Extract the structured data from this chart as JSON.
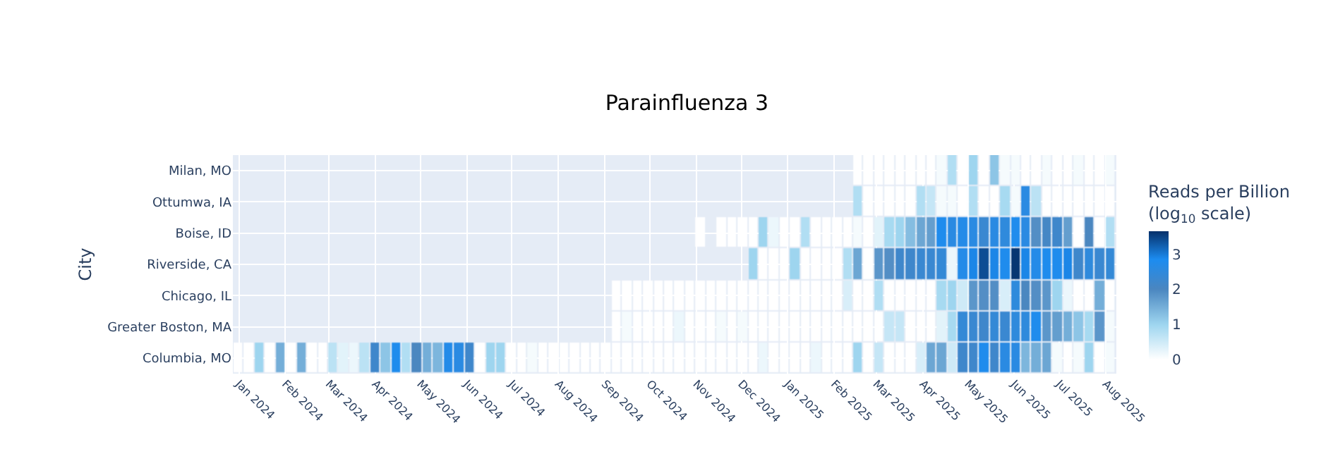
{
  "chart_data": {
    "type": "heatmap",
    "title": "Parainfluenza 3",
    "ylabel": "City",
    "clabel": "Reads per Billion (log$_{10}$ scale)",
    "x": [
      "2024-01-01",
      "2024-01-08",
      "2024-01-15",
      "2024-01-22",
      "2024-01-29",
      "2024-02-05",
      "2024-02-12",
      "2024-02-19",
      "2024-02-26",
      "2024-03-04",
      "2024-03-11",
      "2024-03-18",
      "2024-03-25",
      "2024-04-01",
      "2024-04-08",
      "2024-04-15",
      "2024-04-22",
      "2024-04-29",
      "2024-05-06",
      "2024-05-13",
      "2024-05-20",
      "2024-05-27",
      "2024-06-03",
      "2024-06-10",
      "2024-06-17",
      "2024-06-24",
      "2024-07-01",
      "2024-07-08",
      "2024-07-15",
      "2024-07-22",
      "2024-07-29",
      "2024-08-05",
      "2024-08-12",
      "2024-08-19",
      "2024-08-26",
      "2024-09-02",
      "2024-09-09",
      "2024-09-16",
      "2024-09-23",
      "2024-09-30",
      "2024-10-07",
      "2024-10-14",
      "2024-10-21",
      "2024-10-28",
      "2024-11-04",
      "2024-11-11",
      "2024-11-18",
      "2024-11-25",
      "2024-12-02",
      "2024-12-09",
      "2024-12-16",
      "2024-12-23",
      "2024-12-30",
      "2025-01-06",
      "2025-01-13",
      "2025-01-20",
      "2025-01-27",
      "2025-02-03",
      "2025-02-10",
      "2025-02-17",
      "2025-02-24",
      "2025-03-03",
      "2025-03-10",
      "2025-03-17",
      "2025-03-24",
      "2025-03-31",
      "2025-04-07",
      "2025-04-14",
      "2025-04-21",
      "2025-04-28",
      "2025-05-05",
      "2025-05-12",
      "2025-05-19",
      "2025-05-26",
      "2025-06-02",
      "2025-06-09",
      "2025-06-16",
      "2025-06-23",
      "2025-06-30",
      "2025-07-07",
      "2025-07-14",
      "2025-07-21",
      "2025-07-28",
      "2025-08-04"
    ],
    "y_categories": [
      "Milan, MO",
      "Ottumwa, IA",
      "Boise, ID",
      "Riverside, CA",
      "Chicago, IL",
      "Greater Boston, MA",
      "Columbia, MO"
    ],
    "cells": [
      [
        null,
        null,
        null,
        null,
        null,
        null,
        null,
        null,
        null,
        null,
        null,
        null,
        null,
        null,
        null,
        null,
        null,
        null,
        null,
        null,
        null,
        null,
        null,
        null,
        null,
        null,
        null,
        null,
        null,
        null,
        null,
        null,
        null,
        null,
        null,
        null,
        null,
        null,
        null,
        null,
        null,
        null,
        null,
        null,
        null,
        null,
        null,
        null,
        null,
        null,
        null,
        null,
        null,
        null,
        null,
        null,
        null,
        null,
        null,
        0,
        0,
        0,
        0,
        0,
        0,
        0,
        0,
        0.1,
        0.8,
        0,
        1.0,
        0,
        1.2,
        0.1,
        0.1,
        0,
        0,
        0.1,
        0,
        0,
        0.1,
        0,
        0,
        0.1
      ],
      [
        null,
        null,
        null,
        null,
        null,
        null,
        null,
        null,
        null,
        null,
        null,
        null,
        null,
        null,
        null,
        null,
        null,
        null,
        null,
        null,
        null,
        null,
        null,
        null,
        null,
        null,
        null,
        null,
        null,
        null,
        null,
        null,
        null,
        null,
        null,
        null,
        null,
        null,
        null,
        null,
        null,
        null,
        null,
        null,
        null,
        null,
        null,
        null,
        null,
        null,
        null,
        null,
        null,
        null,
        null,
        null,
        null,
        null,
        null,
        0.8,
        0,
        0,
        0,
        0,
        0,
        0.8,
        0.6,
        0.1,
        0.1,
        0,
        0.8,
        0,
        0,
        0.9,
        0.1,
        2.6,
        0.7,
        0,
        0,
        0,
        0,
        0,
        0,
        0
      ],
      [
        null,
        null,
        null,
        null,
        null,
        null,
        null,
        null,
        null,
        null,
        null,
        null,
        null,
        null,
        null,
        null,
        null,
        null,
        null,
        null,
        null,
        null,
        null,
        null,
        null,
        null,
        null,
        null,
        null,
        null,
        null,
        null,
        null,
        null,
        null,
        null,
        null,
        null,
        null,
        null,
        null,
        null,
        null,
        null,
        0,
        null,
        0,
        0,
        0,
        0,
        1.0,
        0.2,
        0,
        0,
        0.8,
        0,
        0,
        0,
        0,
        0.1,
        0,
        0.3,
        0.9,
        1.0,
        1.3,
        1.6,
        1.7,
        2.8,
        2.6,
        2.7,
        2.6,
        2.3,
        2.6,
        2.5,
        2.8,
        2.6,
        1.9,
        2.1,
        2.2,
        1.7,
        0,
        2.0,
        0,
        0.8
      ],
      [
        null,
        null,
        null,
        null,
        null,
        null,
        null,
        null,
        null,
        null,
        null,
        null,
        null,
        null,
        null,
        null,
        null,
        null,
        null,
        null,
        null,
        null,
        null,
        null,
        null,
        null,
        null,
        null,
        null,
        null,
        null,
        null,
        null,
        null,
        null,
        null,
        null,
        null,
        null,
        null,
        null,
        null,
        null,
        null,
        null,
        null,
        null,
        null,
        null,
        1.0,
        0,
        0,
        0,
        1.0,
        0,
        0,
        0,
        0,
        0.8,
        1.6,
        0,
        1.8,
        1.9,
        2.2,
        2.2,
        2.3,
        2.3,
        2.4,
        0.2,
        2.7,
        2.9,
        3.4,
        2.9,
        2.8,
        3.6,
        2.9,
        2.7,
        2.8,
        2.8,
        2.9,
        2.2,
        2.5,
        2.3,
        2.4
      ],
      [
        null,
        null,
        null,
        null,
        null,
        null,
        null,
        null,
        null,
        null,
        null,
        null,
        null,
        null,
        null,
        null,
        null,
        null,
        null,
        null,
        null,
        null,
        null,
        null,
        null,
        null,
        null,
        null,
        null,
        null,
        null,
        null,
        null,
        null,
        null,
        null,
        0,
        0,
        0,
        0,
        0,
        0,
        0,
        0,
        0,
        0,
        0,
        0,
        0,
        0,
        0,
        0,
        0,
        0,
        0,
        0,
        0,
        0,
        0.4,
        0,
        0,
        0.8,
        0,
        0,
        0,
        0,
        0,
        0.9,
        1.0,
        0.5,
        1.8,
        1.9,
        1.9,
        0.4,
        2.5,
        2.0,
        1.9,
        1.8,
        1.0,
        0.2,
        0,
        0,
        1.5,
        0
      ],
      [
        null,
        null,
        null,
        null,
        null,
        null,
        null,
        null,
        null,
        null,
        null,
        null,
        null,
        null,
        null,
        null,
        null,
        null,
        null,
        null,
        null,
        null,
        null,
        null,
        null,
        null,
        null,
        null,
        null,
        null,
        null,
        null,
        null,
        null,
        null,
        null,
        0,
        0.1,
        0,
        0,
        0,
        0,
        0.2,
        0,
        0,
        0,
        0.1,
        0,
        0.1,
        0,
        0,
        0,
        0,
        0,
        0,
        0,
        0,
        0,
        0,
        0,
        0,
        0,
        0.6,
        0.6,
        0,
        0,
        0,
        0.3,
        0.9,
        2.4,
        2.3,
        2.2,
        2.4,
        2.3,
        2.5,
        2.5,
        2.8,
        1.8,
        1.7,
        1.5,
        1.2,
        0.9,
        1.8,
        0.1
      ],
      [
        0,
        0,
        1.0,
        0,
        1.5,
        0,
        1.5,
        0,
        0,
        0.7,
        0.3,
        0.2,
        0.7,
        2.2,
        1.2,
        2.8,
        0.8,
        2.0,
        1.5,
        1.4,
        2.7,
        2.6,
        2.2,
        0,
        1.0,
        1.0,
        0,
        0,
        0.1,
        0,
        0,
        0,
        0,
        0,
        0,
        0,
        0,
        0,
        0,
        0,
        0,
        0,
        0,
        0,
        0,
        0,
        0,
        0,
        0,
        0,
        0.2,
        0,
        0,
        0,
        0,
        0.2,
        0,
        0,
        0,
        1.0,
        0,
        0.6,
        0,
        0,
        0,
        0.4,
        1.6,
        1.6,
        0.5,
        2.2,
        2.2,
        2.8,
        2.2,
        2.6,
        2.6,
        1.4,
        1.5,
        1.6,
        0.1,
        0,
        0.1,
        1.0,
        0,
        0.1
      ]
    ],
    "xlim": [
      "2023-12-28",
      "2025-08-08"
    ],
    "xticks": [
      {
        "value": "2024-01-01",
        "label": "Jan 2024"
      },
      {
        "value": "2024-02-01",
        "label": "Feb 2024"
      },
      {
        "value": "2024-03-01",
        "label": "Mar 2024"
      },
      {
        "value": "2024-04-01",
        "label": "Apr 2024"
      },
      {
        "value": "2024-05-01",
        "label": "May 2024"
      },
      {
        "value": "2024-06-01",
        "label": "Jun 2024"
      },
      {
        "value": "2024-07-01",
        "label": "Jul 2024"
      },
      {
        "value": "2024-08-01",
        "label": "Aug 2024"
      },
      {
        "value": "2024-09-01",
        "label": "Sep 2024"
      },
      {
        "value": "2024-10-01",
        "label": "Oct 2024"
      },
      {
        "value": "2024-11-01",
        "label": "Nov 2024"
      },
      {
        "value": "2024-12-01",
        "label": "Dec 2024"
      },
      {
        "value": "2025-01-01",
        "label": "Jan 2025"
      },
      {
        "value": "2025-02-01",
        "label": "Feb 2025"
      },
      {
        "value": "2025-03-01",
        "label": "Mar 2025"
      },
      {
        "value": "2025-04-01",
        "label": "Apr 2025"
      },
      {
        "value": "2025-05-01",
        "label": "May 2025"
      },
      {
        "value": "2025-06-01",
        "label": "Jun 2025"
      },
      {
        "value": "2025-07-01",
        "label": "Jul 2025"
      },
      {
        "value": "2025-08-01",
        "label": "Aug 2025"
      }
    ],
    "clim": [
      0,
      3.65
    ],
    "cticks": [
      0,
      1,
      2,
      3
    ],
    "grid": true
  }
}
